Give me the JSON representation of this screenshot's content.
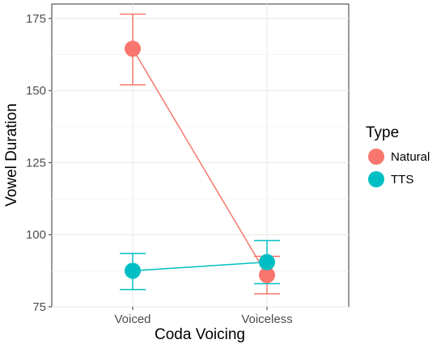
{
  "chart_data": {
    "type": "scatter",
    "title": "",
    "xlabel": "Coda Voicing",
    "ylabel": "Vowel Duration",
    "categories": [
      "Voiced",
      "Voiceless"
    ],
    "ylim": [
      75,
      180
    ],
    "yticks": [
      75,
      100,
      125,
      150,
      175
    ],
    "grid": true,
    "legend": {
      "title": "Type",
      "position": "right"
    },
    "series": [
      {
        "name": "Natural",
        "color": "#F8766D",
        "values": [
          164.5,
          86.0
        ],
        "error_low": [
          152.0,
          79.5
        ],
        "error_high": [
          176.5,
          92.5
        ]
      },
      {
        "name": "TTS",
        "color": "#00BFC4",
        "values": [
          87.5,
          90.5
        ],
        "error_low": [
          81.0,
          83.0
        ],
        "error_high": [
          93.5,
          98.0
        ]
      }
    ]
  }
}
